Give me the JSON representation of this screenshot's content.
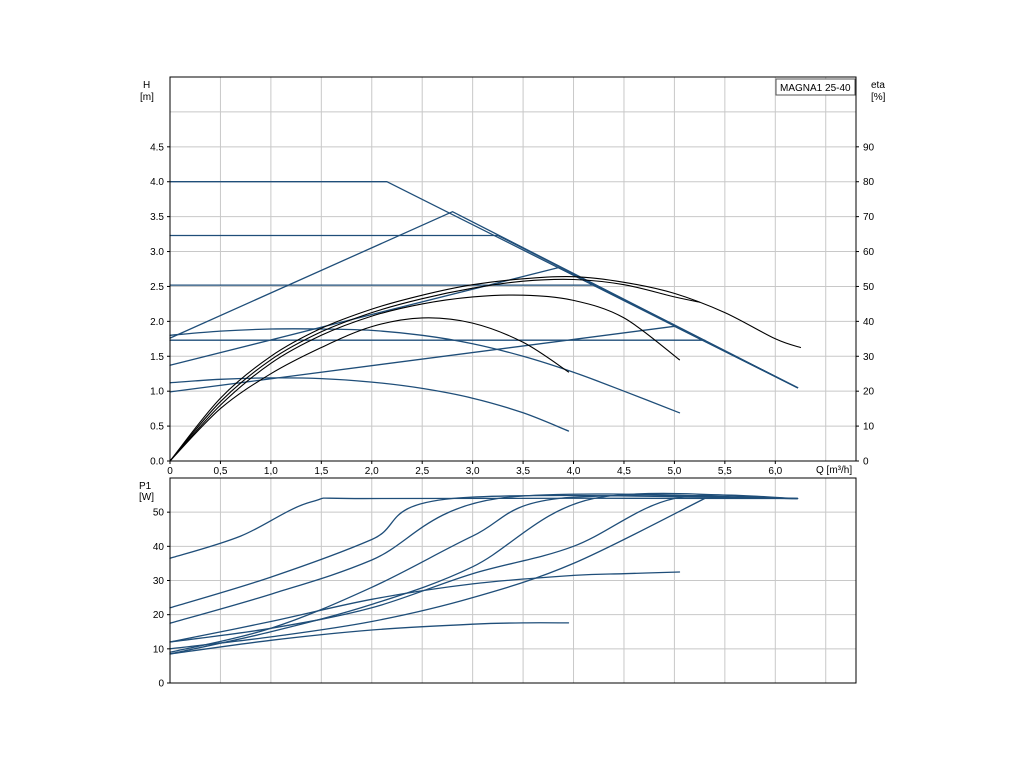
{
  "chart_data": [
    {
      "type": "line",
      "title": "MAGNA1 25-40",
      "xlabel": "Q [m³/h]",
      "ylabel": "H",
      "ylabel_unit": "[m]",
      "y2label": "eta",
      "y2label_unit": "[%]",
      "xlim": [
        0,
        6.8
      ],
      "ylim": [
        0,
        5.5
      ],
      "y2lim": [
        0,
        110
      ],
      "xticks": [
        "0",
        "0,5",
        "1,0",
        "1,5",
        "2,0",
        "2,5",
        "3,0",
        "3,5",
        "4,0",
        "4,5",
        "5,0",
        "5,5",
        "6,0"
      ],
      "yticks": [
        "0.0",
        "0.5",
        "1.0",
        "1.5",
        "2.0",
        "2.5",
        "3.0",
        "3.5",
        "4.0",
        "4.5"
      ],
      "y2ticks": [
        "0",
        "10",
        "20",
        "30",
        "40",
        "50",
        "60",
        "70",
        "80",
        "90"
      ],
      "grid": true,
      "colors": {
        "head": "#1f4e79",
        "eta": "#000000"
      },
      "head_series": [
        {
          "x": [
            0,
            2.15,
            6.22
          ],
          "y": [
            4.0,
            4.0,
            1.05
          ]
        },
        {
          "x": [
            0,
            3.25,
            6.22
          ],
          "y": [
            3.23,
            3.23,
            1.05
          ]
        },
        {
          "x": [
            0,
            4.2,
            6.22
          ],
          "y": [
            2.52,
            2.52,
            1.05
          ]
        },
        {
          "x": [
            0,
            1.5,
            3.0,
            4.5,
            5.3
          ],
          "y": [
            1.73,
            1.73,
            1.73,
            1.73,
            1.73
          ]
        },
        {
          "x": [
            0,
            2.8,
            6.22
          ],
          "y": [
            1.76,
            3.57,
            1.05
          ]
        },
        {
          "x": [
            0,
            3.85,
            6.22
          ],
          "y": [
            1.37,
            2.77,
            1.05
          ]
        },
        {
          "x": [
            0,
            5.0,
            6.22
          ],
          "y": [
            0.99,
            1.93,
            1.05
          ]
        },
        {
          "x": [
            0,
            0.5,
            1.0,
            1.5,
            2.0,
            2.5,
            3.0,
            3.5,
            4.0,
            4.5,
            5.05
          ],
          "y": [
            1.8,
            1.86,
            1.89,
            1.89,
            1.87,
            1.8,
            1.68,
            1.5,
            1.27,
            1.0,
            0.69
          ]
        },
        {
          "x": [
            0,
            0.5,
            1.0,
            1.5,
            2.0,
            2.5,
            3.0,
            3.5,
            3.95
          ],
          "y": [
            1.12,
            1.17,
            1.19,
            1.18,
            1.13,
            1.04,
            0.9,
            0.69,
            0.43
          ]
        }
      ],
      "eta_series": [
        {
          "x": [
            0,
            0.5,
            1.0,
            1.5,
            2.0,
            2.5,
            3.0,
            3.5,
            4.0,
            4.5,
            5.0,
            5.5,
            6.0,
            6.25
          ],
          "y": [
            0,
            18,
            30,
            38,
            43.5,
            47.5,
            50.5,
            52.2,
            52.8,
            51.2,
            48,
            42.5,
            35,
            32.5
          ]
        },
        {
          "x": [
            0,
            0.5,
            1.0,
            1.5,
            2.0,
            2.5,
            3.0,
            3.5,
            4.0,
            4.5,
            5.0,
            5.25
          ],
          "y": [
            0,
            17,
            29,
            37,
            42.5,
            46.5,
            49.5,
            51.5,
            52,
            50.5,
            47,
            45.5
          ]
        },
        {
          "x": [
            0,
            0.5,
            1.0,
            1.5,
            2.0,
            2.5,
            3.0,
            3.5,
            4.0,
            4.5,
            5.05
          ],
          "y": [
            0,
            16,
            28,
            36,
            41.5,
            45,
            47,
            47.5,
            46,
            41,
            29
          ]
        },
        {
          "x": [
            0,
            0.5,
            1.0,
            1.5,
            2.0,
            2.5,
            3.0,
            3.5,
            3.95
          ],
          "y": [
            0,
            15,
            25,
            32.5,
            38.5,
            41,
            39.5,
            34,
            25.5
          ]
        }
      ]
    },
    {
      "type": "line",
      "xlabel": "",
      "ylabel": "P1",
      "ylabel_unit": "[W]",
      "xlim": [
        0,
        6.8
      ],
      "ylim": [
        0,
        60
      ],
      "yticks": [
        "0",
        "10",
        "20",
        "30",
        "40",
        "50"
      ],
      "grid": true,
      "colors": {
        "power": "#1f4e79"
      },
      "series": [
        {
          "x": [
            0,
            0.7,
            1.4,
            2.1,
            6.22
          ],
          "y": [
            36.5,
            43,
            53,
            54,
            54
          ]
        },
        {
          "x": [
            0,
            1.0,
            2.0,
            2.8,
            6.22
          ],
          "y": [
            22,
            31,
            42,
            54,
            54
          ]
        },
        {
          "x": [
            0,
            1.0,
            2.0,
            3.25,
            6.22
          ],
          "y": [
            17.5,
            26,
            36,
            54,
            54
          ]
        },
        {
          "x": [
            0,
            1.0,
            2.0,
            3.0,
            3.85,
            6.22
          ],
          "y": [
            9,
            16,
            28,
            43,
            54,
            54
          ]
        },
        {
          "x": [
            0,
            1.0,
            2.0,
            3.0,
            4.2,
            6.22
          ],
          "y": [
            8.5,
            15,
            23,
            34,
            54,
            54
          ]
        },
        {
          "x": [
            0,
            1.0,
            2.0,
            3.0,
            4.0,
            5.0,
            6.22
          ],
          "y": [
            12,
            16,
            22,
            32,
            40,
            54,
            54
          ]
        },
        {
          "x": [
            0,
            1.0,
            2.0,
            3.0,
            4.0,
            5.3
          ],
          "y": [
            10,
            13.5,
            18,
            25,
            35,
            54
          ]
        },
        {
          "x": [
            0,
            1.0,
            2.0,
            3.0,
            4.0,
            4.5,
            5.05
          ],
          "y": [
            12,
            18,
            24.5,
            29,
            31.5,
            32,
            32.5
          ]
        },
        {
          "x": [
            0,
            1.0,
            2.0,
            3.0,
            3.5,
            3.95
          ],
          "y": [
            8.5,
            12.5,
            15.5,
            17.2,
            17.6,
            17.6
          ]
        }
      ]
    }
  ]
}
